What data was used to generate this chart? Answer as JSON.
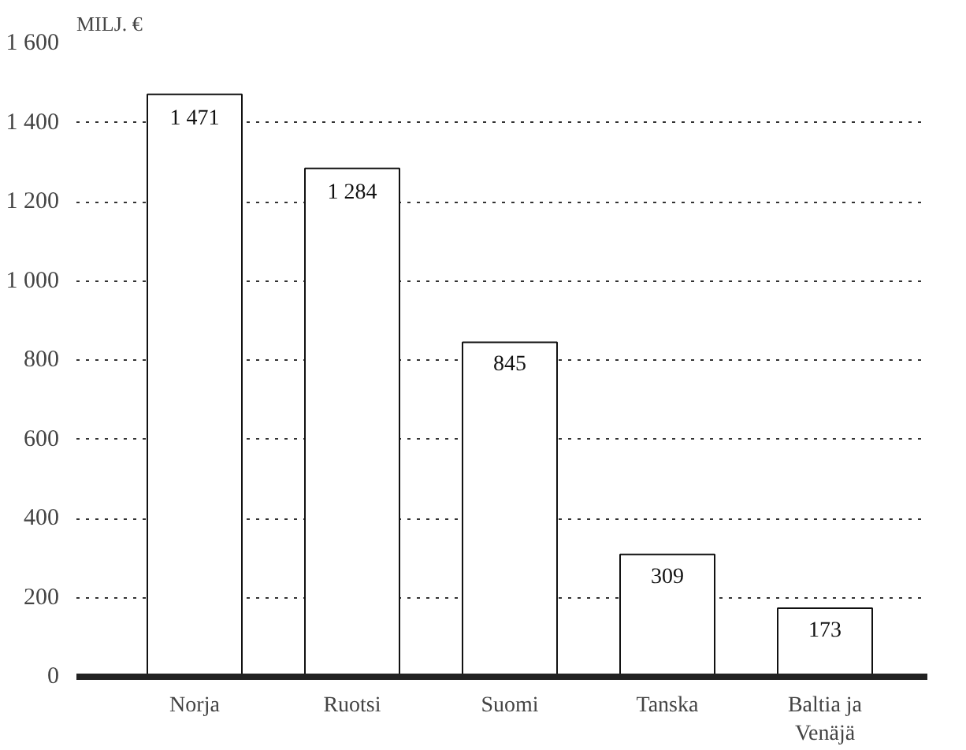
{
  "chart_data": {
    "type": "bar",
    "ylabel": "MILJ. €",
    "categories": [
      "Norja",
      "Ruotsi",
      "Suomi",
      "Tanska",
      "Baltia ja\nVenäjä"
    ],
    "values": [
      1471,
      1284,
      845,
      309,
      173
    ],
    "value_labels": [
      "1 471",
      "1 284",
      "845",
      "309",
      "173"
    ],
    "color": "#ffffff",
    "ylim": [
      0,
      1600
    ],
    "yticks": [
      {
        "value": 0,
        "label": "0"
      },
      {
        "value": 200,
        "label": "200"
      },
      {
        "value": 400,
        "label": "400"
      },
      {
        "value": 600,
        "label": "600"
      },
      {
        "value": 800,
        "label": "800"
      },
      {
        "value": 1000,
        "label": "1 000"
      },
      {
        "value": 1200,
        "label": "1 200"
      },
      {
        "value": 1400,
        "label": "1 400"
      },
      {
        "value": 1600,
        "label": "1 600"
      }
    ],
    "grid": "y"
  }
}
